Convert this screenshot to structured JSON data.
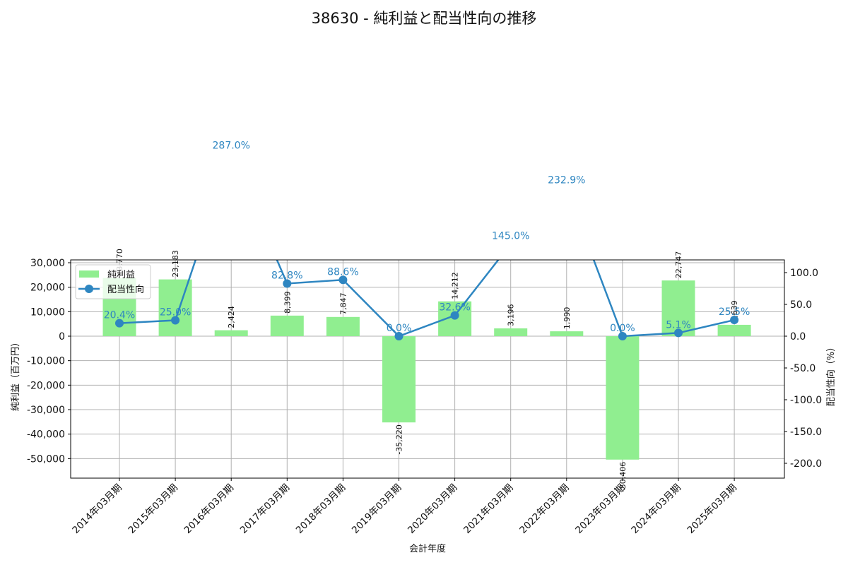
{
  "title": "38630 - 純利益と配当性向の推移",
  "chart_data": {
    "type": "bar+line",
    "title": "38630 - 純利益と配当性向の推移",
    "xlabel": "会計年度",
    "ylabel_left": "純利益（百万円）",
    "ylabel_right": "配当性向（%）",
    "categories": [
      "2014年03月期",
      "2015年03月期",
      "2016年03月期",
      "2017年03月期",
      "2018年03月期",
      "2019年03月期",
      "2020年03月期",
      "2021年03月期",
      "2022年03月期",
      "2023年03月期",
      "2024年03月期",
      "2025年03月期"
    ],
    "series": [
      {
        "name": "純利益",
        "type": "bar",
        "axis": "left",
        "color": "#90ee90",
        "values": [
          23770,
          23183,
          2424,
          8399,
          7847,
          -35220,
          14212,
          3196,
          1990,
          -50406,
          22747,
          4639
        ],
        "labels": [
          "23,770",
          "23,183",
          "2,424",
          "8,399",
          "7,847",
          "-35,220",
          "14,212",
          "3,196",
          "1,990",
          "-50,406",
          "22,747",
          "4,639"
        ]
      },
      {
        "name": "配当性向",
        "type": "line",
        "axis": "right",
        "color": "#2e86c1",
        "values": [
          20.4,
          25.0,
          287.0,
          82.8,
          88.6,
          0.0,
          32.6,
          145.0,
          232.9,
          0.0,
          5.1,
          25.5
        ],
        "labels": [
          "20.4%",
          "25.0%",
          "287.0%",
          "82.8%",
          "88.6%",
          "0.0%",
          "32.6%",
          "145.0%",
          "232.9%",
          "0.0%",
          "5.1%",
          "25.5%"
        ]
      }
    ],
    "left_ticks": [
      "30,000",
      "20,000",
      "10,000",
      "0",
      "-10,000",
      "-20,000",
      "-30,000",
      "-40,000",
      "-50,000"
    ],
    "left_tick_values": [
      30000,
      20000,
      10000,
      0,
      -10000,
      -20000,
      -30000,
      -40000,
      -50000
    ],
    "right_ticks": [
      "100.0",
      "50.0",
      "0.0",
      "-50.0",
      "-100.0",
      "-150.0",
      "-200.0"
    ],
    "right_tick_values": [
      100,
      50,
      0,
      -50,
      -100,
      -150,
      -200
    ],
    "ylim_left": [
      -58000,
      30000
    ],
    "ylim_right": [
      -225,
      120
    ],
    "grid": true,
    "legend_position": "upper left"
  }
}
